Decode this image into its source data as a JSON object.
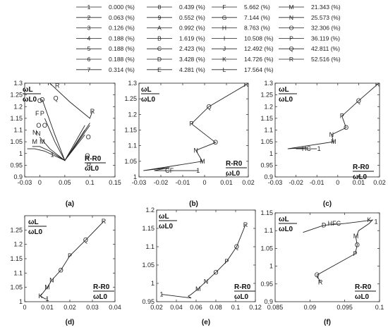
{
  "legend": [
    {
      "marker": "1",
      "label": "0.000 (%)"
    },
    {
      "marker": "2",
      "label": "0.063 (%)"
    },
    {
      "marker": "3",
      "label": "0.126 (%)"
    },
    {
      "marker": "4",
      "label": "0.188 (%)"
    },
    {
      "marker": "5",
      "label": "0.188 (%)"
    },
    {
      "marker": "6",
      "label": "0.188 (%)"
    },
    {
      "marker": "7",
      "label": "0.314 (%)"
    },
    {
      "marker": "8",
      "label": "0.439 (%)"
    },
    {
      "marker": "9",
      "label": "0.552 (%)"
    },
    {
      "marker": "A",
      "label": "0.992 (%)"
    },
    {
      "marker": "B",
      "label": "1.619 (%)"
    },
    {
      "marker": "C",
      "label": "2.423 (%)"
    },
    {
      "marker": "D",
      "label": "3.428 (%)"
    },
    {
      "marker": "E",
      "label": "4.281 (%)"
    },
    {
      "marker": "F",
      "label": "5.662 (%)"
    },
    {
      "marker": "G",
      "label": "7.144 (%)"
    },
    {
      "marker": "H",
      "label": "8.763 (%)"
    },
    {
      "marker": "I",
      "label": "10.508 (%)"
    },
    {
      "marker": "J",
      "label": "12.492 (%)"
    },
    {
      "marker": "K",
      "label": "14.726 (%)"
    },
    {
      "marker": "L",
      "label": "17.564 (%)"
    },
    {
      "marker": "M",
      "label": "21.343 (%)"
    },
    {
      "marker": "N",
      "label": "25.573 (%)"
    },
    {
      "marker": "O",
      "label": "32.306 (%)"
    },
    {
      "marker": "P",
      "label": "36.119 (%)"
    },
    {
      "marker": "Q",
      "label": "42.811 (%)"
    },
    {
      "marker": "R",
      "label": "52.516 (%)"
    }
  ],
  "axis_text": {
    "y_num": "ωL",
    "y_den": "ωL0",
    "x_num": "R-R0",
    "x_den": "ωL0"
  },
  "chart_data": [
    {
      "type": "line",
      "panel_label": "(a)",
      "xlim": [
        -0.03,
        0.15
      ],
      "ylim": [
        0.9,
        1.3
      ],
      "xticks": [
        "-0.03",
        "0",
        "0.05",
        "0.1",
        "0.15"
      ],
      "yticks": [
        "0.9",
        "0.95",
        "1",
        "1.05",
        "1.1",
        "1.15",
        "1.2",
        "1.25",
        "1.3"
      ],
      "series": [
        {
          "x": [
            -0.025,
            -0.01,
            0.01,
            0.05,
            0.09
          ],
          "y": [
            1.02,
            1.02,
            1.01,
            0.97,
            1.08
          ]
        },
        {
          "x": [
            -0.015,
            0.0,
            0.02,
            0.05,
            0.09
          ],
          "y": [
            1.03,
            1.03,
            1.01,
            0.97,
            1.1
          ]
        },
        {
          "x": [
            0.0,
            0.02,
            0.05,
            0.09
          ],
          "y": [
            1.07,
            1.02,
            0.97,
            1.12
          ]
        },
        {
          "x": [
            0.01,
            0.03,
            0.05,
            0.1
          ],
          "y": [
            1.15,
            1.05,
            0.97,
            1.13
          ]
        },
        {
          "x": [
            0.005,
            0.03,
            0.05,
            0.1
          ],
          "y": [
            1.23,
            1.08,
            0.97,
            1.12
          ]
        },
        {
          "x": [
            0.02,
            0.06,
            0.1,
            0.105
          ],
          "y": [
            1.3,
            1.22,
            1.15,
            1.18
          ]
        }
      ],
      "marker_points": [
        {
          "m": "R",
          "x": 0.02,
          "y": 1.3
        },
        {
          "m": "R",
          "x": 0.035,
          "y": 1.29
        },
        {
          "m": "R",
          "x": 0.105,
          "y": 1.18
        },
        {
          "m": "Q",
          "x": 0.032,
          "y": 1.235
        },
        {
          "m": "O",
          "x": 0.005,
          "y": 1.23
        },
        {
          "m": "O",
          "x": 0.0,
          "y": 1.225
        },
        {
          "m": "P",
          "x": 0.005,
          "y": 1.17
        },
        {
          "m": "F",
          "x": -0.005,
          "y": 1.17
        },
        {
          "m": "O",
          "x": 0.01,
          "y": 1.12
        },
        {
          "m": "O",
          "x": -0.002,
          "y": 1.12
        },
        {
          "m": "N",
          "x": -0.01,
          "y": 1.09
        },
        {
          "m": "N",
          "x": -0.003,
          "y": 1.085
        },
        {
          "m": "M",
          "x": -0.01,
          "y": 1.05
        },
        {
          "m": "M",
          "x": 0.005,
          "y": 1.05
        },
        {
          "m": "1",
          "x": 0.025,
          "y": 0.995
        },
        {
          "m": "O",
          "x": 0.097,
          "y": 1.07
        },
        {
          "m": "O",
          "x": 0.095,
          "y": 0.99
        },
        {
          "m": "R",
          "x": 0.098,
          "y": 0.95
        }
      ]
    },
    {
      "type": "line",
      "panel_label": "(b)",
      "xlim": [
        -0.03,
        0.02
      ],
      "ylim": [
        1.0,
        1.3
      ],
      "xticks": [
        "-0.03",
        "-0.02",
        "-0.01",
        "0",
        "0.01",
        "0.02"
      ],
      "yticks": [
        "1",
        "1.05",
        "1.1",
        "1.15",
        "1.2",
        "1.25",
        "1.3"
      ],
      "series": [
        {
          "x": [
            0.019,
            0.002,
            -0.006,
            0.005,
            -0.004,
            -0.001,
            -0.028,
            -0.016,
            -0.023,
            -0.003
          ],
          "y": [
            1.295,
            1.225,
            1.17,
            1.11,
            1.085,
            1.05,
            1.02,
            1.03,
            1.02,
            1.02
          ]
        }
      ],
      "marker_points": [
        {
          "m": "R",
          "x": 0.019,
          "y": 1.295
        },
        {
          "m": "Q",
          "x": 0.002,
          "y": 1.225
        },
        {
          "m": "P",
          "x": -0.006,
          "y": 1.17
        },
        {
          "m": "O",
          "x": 0.005,
          "y": 1.11
        },
        {
          "m": "N",
          "x": -0.004,
          "y": 1.085
        },
        {
          "m": "M",
          "x": -0.001,
          "y": 1.05
        },
        {
          "m": "C",
          "x": -0.017,
          "y": 1.02
        },
        {
          "m": "F",
          "x": -0.015,
          "y": 1.02
        },
        {
          "m": "1",
          "x": -0.003,
          "y": 1.02
        }
      ]
    },
    {
      "type": "line",
      "panel_label": "(c)",
      "xlim": [
        -0.03,
        0.02
      ],
      "ylim": [
        0.9,
        1.3
      ],
      "xticks": [
        "-0.03",
        "-0.02",
        "-0.01",
        "0",
        "0.01",
        "0.02"
      ],
      "yticks": [
        "0.9",
        "0.95",
        "1",
        "1.05",
        "1.1",
        "1.15",
        "1.2",
        "1.25",
        "1.3"
      ],
      "series": [
        {
          "x": [
            0.019,
            0.01,
            0.002,
            0.004,
            -0.003,
            -0.002,
            -0.024,
            -0.015,
            -0.02,
            -0.01
          ],
          "y": [
            1.295,
            1.225,
            1.16,
            1.11,
            1.08,
            1.05,
            1.02,
            1.025,
            1.02,
            1.02
          ]
        }
      ],
      "marker_points": [
        {
          "m": "R",
          "x": 0.019,
          "y": 1.295
        },
        {
          "m": "Q",
          "x": 0.01,
          "y": 1.225
        },
        {
          "m": "P",
          "x": 0.002,
          "y": 1.16
        },
        {
          "m": "O",
          "x": 0.004,
          "y": 1.11
        },
        {
          "m": "N",
          "x": -0.003,
          "y": 1.08
        },
        {
          "m": "M",
          "x": -0.002,
          "y": 1.05
        },
        {
          "m": "HC",
          "x": -0.015,
          "y": 1.02
        },
        {
          "m": "1",
          "x": -0.009,
          "y": 1.02
        }
      ]
    },
    {
      "type": "line",
      "panel_label": "(d)",
      "xlim": [
        0,
        0.04
      ],
      "ylim": [
        1.0,
        1.3
      ],
      "xticks": [
        "0",
        "0.01",
        "0.02",
        "0.03",
        "0.04"
      ],
      "yticks": [
        "1",
        "1.05",
        "1.1",
        "1.15",
        "1.2",
        "1.25"
      ],
      "series": [
        {
          "x": [
            0.035,
            0.027,
            0.02,
            0.016,
            0.012,
            0.01,
            0.007,
            0.009,
            0.01
          ],
          "y": [
            1.28,
            1.215,
            1.16,
            1.11,
            1.075,
            1.05,
            1.02,
            1.01,
            1.01
          ]
        }
      ],
      "marker_points": [
        {
          "m": "R",
          "x": 0.035,
          "y": 1.28
        },
        {
          "m": "Q",
          "x": 0.027,
          "y": 1.215
        },
        {
          "m": "P",
          "x": 0.02,
          "y": 1.16
        },
        {
          "m": "O",
          "x": 0.016,
          "y": 1.11
        },
        {
          "m": "N",
          "x": 0.012,
          "y": 1.075
        },
        {
          "m": "M",
          "x": 0.01,
          "y": 1.05
        },
        {
          "m": "K",
          "x": 0.007,
          "y": 1.02
        },
        {
          "m": "1",
          "x": 0.01,
          "y": 1.01
        }
      ]
    },
    {
      "type": "line",
      "panel_label": "(e)",
      "xlim": [
        0.02,
        0.12
      ],
      "ylim": [
        0.95,
        1.2
      ],
      "xticks": [
        "0.02",
        "0.04",
        "0.06",
        "0.08",
        "0.1",
        "0.12"
      ],
      "yticks": [
        "0.95",
        "1",
        "1.05",
        "1.1",
        "1.15",
        "1.2"
      ],
      "series": [
        {
          "x": [
            0.11,
            0.101,
            0.091,
            0.08,
            0.07,
            0.062,
            0.055,
            0.052,
            0.055,
            0.025
          ],
          "y": [
            1.16,
            1.1,
            1.06,
            1.03,
            1.005,
            0.985,
            0.97,
            0.965,
            0.96,
            0.97
          ]
        }
      ],
      "marker_points": [
        {
          "m": "R",
          "x": 0.11,
          "y": 1.16
        },
        {
          "m": "Q",
          "x": 0.101,
          "y": 1.1
        },
        {
          "m": "P",
          "x": 0.091,
          "y": 1.06
        },
        {
          "m": "O",
          "x": 0.08,
          "y": 1.03
        },
        {
          "m": "N",
          "x": 0.07,
          "y": 1.005
        },
        {
          "m": "M",
          "x": 0.062,
          "y": 0.985
        },
        {
          "m": "1",
          "x": 0.025,
          "y": 0.97
        }
      ]
    },
    {
      "type": "line",
      "panel_label": "(f)",
      "xlim": [
        0.085,
        0.1
      ],
      "ylim": [
        0.9,
        1.15
      ],
      "xticks": [
        "0.085",
        "0.09",
        "0.095",
        "0.1"
      ],
      "yticks": [
        "0.9",
        "0.95",
        "1",
        "1.05",
        "1.1",
        "1.15"
      ],
      "series": [
        {
          "x": [
            0.0915,
            0.091,
            0.0965,
            0.0968,
            0.0966,
            0.097,
            0.0985,
            0.099,
            0.095,
            0.092,
            0.089
          ],
          "y": [
            0.955,
            0.975,
            1.035,
            1.06,
            1.08,
            1.1,
            1.12,
            1.13,
            1.12,
            1.115,
            1.095
          ]
        }
      ],
      "marker_points": [
        {
          "m": "R",
          "x": 0.0915,
          "y": 0.955
        },
        {
          "m": "Q",
          "x": 0.091,
          "y": 0.975
        },
        {
          "m": "P",
          "x": 0.0965,
          "y": 1.035
        },
        {
          "m": "O",
          "x": 0.0968,
          "y": 1.06
        },
        {
          "m": "M",
          "x": 0.0966,
          "y": 1.085
        },
        {
          "m": "K",
          "x": 0.0985,
          "y": 1.13
        },
        {
          "m": "HFC",
          "x": 0.0935,
          "y": 1.12
        },
        {
          "m": "D",
          "x": 0.092,
          "y": 1.115
        },
        {
          "m": "1",
          "x": 0.0995,
          "y": 1.125
        }
      ]
    }
  ]
}
